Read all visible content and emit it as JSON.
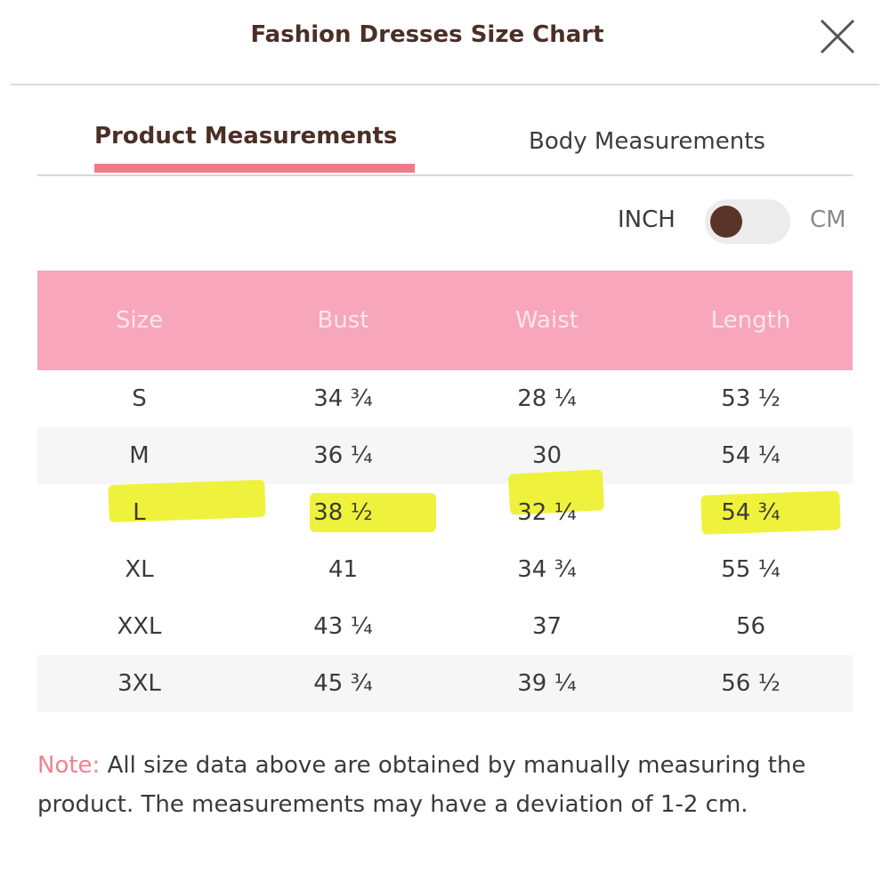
{
  "header": {
    "title": "Fashion Dresses Size Chart",
    "close_icon": "close-icon"
  },
  "tabs": [
    {
      "label": "Product Measurements",
      "active": true
    },
    {
      "label": "Body Measurements",
      "active": false
    }
  ],
  "unit_toggle": {
    "left_label": "INCH",
    "right_label": "CM",
    "selected": "INCH"
  },
  "table": {
    "columns": [
      "Size",
      "Bust",
      "Waist",
      "Length"
    ],
    "rows": [
      [
        "S",
        "34 ¾",
        "28 ¼",
        "53 ½"
      ],
      [
        "M",
        "36 ¼",
        "30",
        "54 ¼"
      ],
      [
        "L",
        "38 ½",
        "32 ¼",
        "54 ¾"
      ],
      [
        "XL",
        "41",
        "34 ¾",
        "55 ¼"
      ],
      [
        "XXL",
        "43 ¼",
        "37",
        "56"
      ],
      [
        "3XL",
        "45 ¾",
        "39 ¼",
        "56 ½"
      ]
    ]
  },
  "note": {
    "label": "Note:",
    "text": "All size data above are obtained by manually measuring the product. The measurements may have a deviation of 1-2 cm."
  },
  "colors": {
    "header_row": "#f7a6bb",
    "tab_underline": "#f07a86",
    "highlight": "#ecf01a",
    "toggle_knob": "#5a3426"
  }
}
